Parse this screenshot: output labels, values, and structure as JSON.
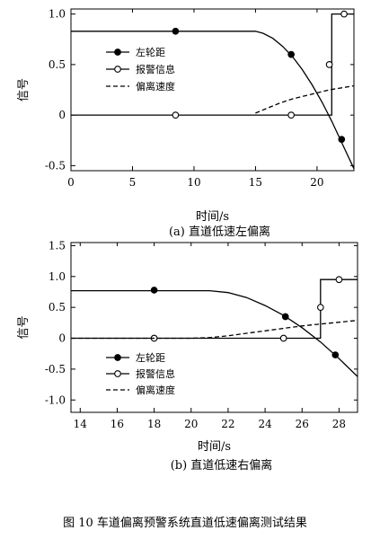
{
  "figure_caption": "图 10 车道偏离预警系统直道低速偏离测试结果",
  "chart_data": [
    {
      "type": "line",
      "subtitle": "(a) 直道低速左偏离",
      "xlabel": "时间/s",
      "ylabel": "信号",
      "xlim": [
        0,
        23
      ],
      "ylim": [
        -0.55,
        1.05
      ],
      "xticks": [
        0,
        5,
        10,
        15,
        20
      ],
      "yticks": [
        -0.5,
        0,
        0.5,
        1.0
      ],
      "ytick_labels": [
        "-0.5",
        "0",
        "0.5",
        "1.0"
      ],
      "legend_position": "center-left",
      "grid": false,
      "series": [
        {
          "name": "左轮距",
          "style": "solid",
          "marker": "filled-circle",
          "x": [
            0,
            15,
            15.6,
            16.4,
            17.2,
            18,
            18.8,
            19.6,
            20.4,
            21.2,
            22,
            23
          ],
          "y": [
            0.83,
            0.83,
            0.81,
            0.76,
            0.68,
            0.58,
            0.45,
            0.3,
            0.13,
            -0.06,
            -0.27,
            -0.53
          ],
          "marker_x": [
            8.5,
            17.9,
            22
          ],
          "marker_y": [
            0.83,
            0.6,
            -0.24
          ]
        },
        {
          "name": "报警信息",
          "style": "solid",
          "marker": "open-circle",
          "x": [
            0,
            21.2,
            21.2,
            23
          ],
          "y": [
            0,
            0,
            1.0,
            1.0
          ],
          "marker_x": [
            8.5,
            17.9,
            21.0,
            22.2
          ],
          "marker_y": [
            0,
            0,
            0.5,
            1.0
          ]
        },
        {
          "name": "偏离速度",
          "style": "dashed",
          "marker": "none",
          "x": [
            15,
            16,
            17,
            18,
            19,
            20,
            21,
            22,
            23
          ],
          "y": [
            0.02,
            0.07,
            0.12,
            0.16,
            0.19,
            0.22,
            0.25,
            0.27,
            0.29
          ]
        }
      ]
    },
    {
      "type": "line",
      "subtitle": "(b) 直道低速右偏离",
      "xlabel": "时间/s",
      "ylabel": "信号",
      "xlim": [
        13.5,
        29
      ],
      "ylim": [
        -1.2,
        1.55
      ],
      "xticks": [
        14,
        16,
        18,
        20,
        22,
        24,
        26,
        28
      ],
      "yticks": [
        -1.0,
        -0.5,
        0,
        0.5,
        1.0,
        1.5
      ],
      "ytick_labels": [
        "-1.0",
        "-0.5",
        "0",
        "0.5",
        "1.0",
        "1.5"
      ],
      "legend_position": "bottom-left",
      "grid": false,
      "series": [
        {
          "name": "左轮距",
          "style": "solid",
          "marker": "filled-circle",
          "x": [
            13.5,
            21,
            22,
            23,
            24,
            25,
            26,
            27,
            28,
            29
          ],
          "y": [
            0.77,
            0.77,
            0.74,
            0.66,
            0.53,
            0.37,
            0.17,
            -0.06,
            -0.33,
            -0.62
          ],
          "marker_x": [
            18,
            25.1,
            27.8
          ],
          "marker_y": [
            0.78,
            0.35,
            -0.27
          ]
        },
        {
          "name": "报警信息",
          "style": "solid",
          "marker": "open-circle",
          "x": [
            13.5,
            27.0,
            27.0,
            29
          ],
          "y": [
            0,
            0,
            0.95,
            0.95
          ],
          "marker_x": [
            18,
            25.0,
            27.0,
            28.0
          ],
          "marker_y": [
            0,
            0,
            0.5,
            0.95
          ]
        },
        {
          "name": "偏离速度",
          "style": "dashed",
          "marker": "none",
          "x": [
            13.5,
            20,
            21,
            22,
            23,
            24,
            25,
            26,
            27,
            28,
            29
          ],
          "y": [
            0,
            0,
            0.01,
            0.04,
            0.08,
            0.12,
            0.16,
            0.2,
            0.23,
            0.26,
            0.29
          ]
        }
      ]
    }
  ]
}
